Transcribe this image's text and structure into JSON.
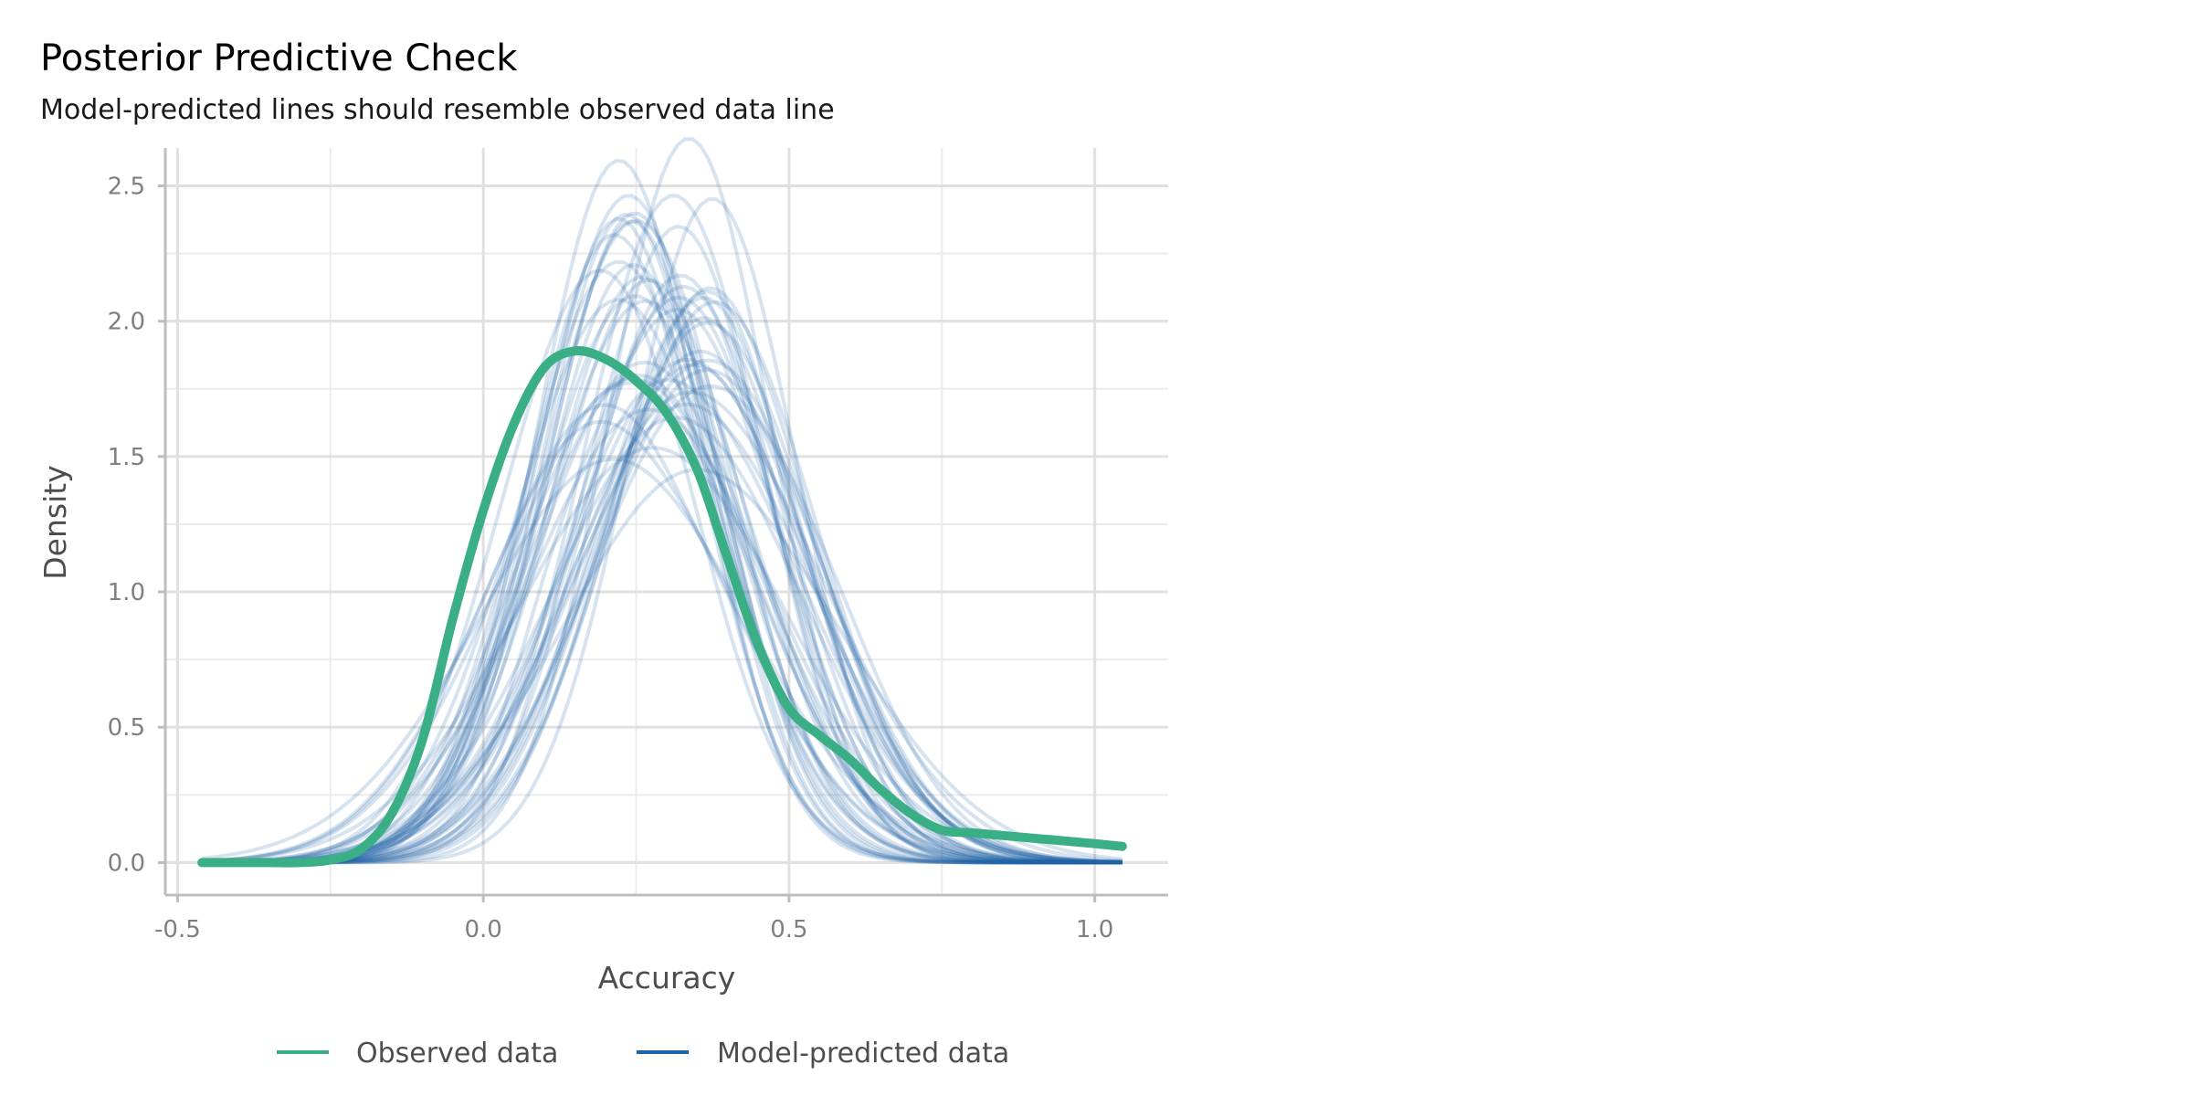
{
  "chart_data": {
    "type": "line",
    "title": "Posterior Predictive Check",
    "subtitle": "Model-predicted lines should resemble observed data line",
    "xlabel": "Accuracy",
    "ylabel": "Density",
    "xlim": [
      -0.52,
      1.12
    ],
    "ylim": [
      -0.12,
      2.64
    ],
    "x_ticks": [
      -0.5,
      0.0,
      0.5,
      1.0
    ],
    "x_tick_labels": [
      "-0.5",
      "0.0",
      "0.5",
      "1.0"
    ],
    "y_ticks": [
      0.0,
      0.5,
      1.0,
      1.5,
      2.0,
      2.5
    ],
    "y_tick_labels": [
      "0.0",
      "0.5",
      "1.0",
      "1.5",
      "2.0",
      "2.5"
    ],
    "grid": true,
    "legend_position": "bottom",
    "colors": {
      "observed": "#3aaf85",
      "predicted": "#1f65a6"
    },
    "observed": {
      "name": "Observed data",
      "x": [
        -0.46,
        -0.4,
        -0.35,
        -0.3,
        -0.25,
        -0.2,
        -0.15,
        -0.1,
        -0.05,
        0.0,
        0.05,
        0.1,
        0.15,
        0.2,
        0.25,
        0.3,
        0.35,
        0.4,
        0.45,
        0.5,
        0.55,
        0.6,
        0.65,
        0.7,
        0.75,
        0.8,
        0.85,
        0.9,
        0.95,
        1.0,
        1.045
      ],
      "y": [
        0.0,
        0.0,
        0.0,
        0.0,
        0.01,
        0.05,
        0.18,
        0.45,
        0.9,
        1.3,
        1.62,
        1.83,
        1.89,
        1.86,
        1.78,
        1.66,
        1.45,
        1.12,
        0.8,
        0.57,
        0.47,
        0.38,
        0.27,
        0.18,
        0.12,
        0.11,
        0.1,
        0.09,
        0.08,
        0.07,
        0.06
      ]
    },
    "predicted": {
      "name": "Model-predicted data",
      "x_range": [
        -0.46,
        1.045
      ],
      "count": 50,
      "peak_range": [
        1.4,
        2.52
      ],
      "mode_range": [
        0.18,
        0.38
      ]
    },
    "legend": [
      "Observed data",
      "Model-predicted data"
    ]
  }
}
